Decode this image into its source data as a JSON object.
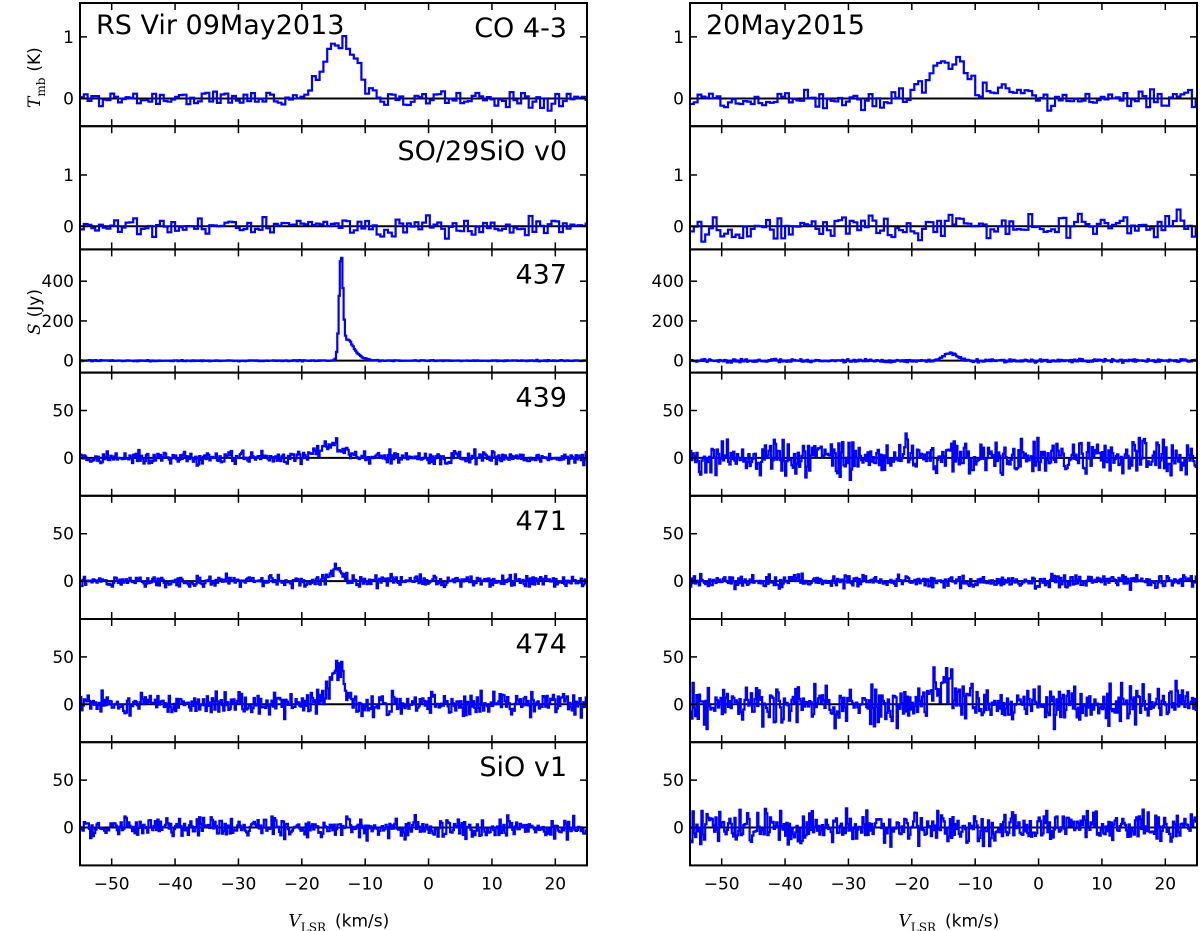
{
  "chart_data": {
    "type": "line",
    "grid": false,
    "xlabel": "V_LSR  (km/s)",
    "xlabel_main": "V",
    "xlabel_sub": "LSR",
    "xlabel_unit": "(km/s)",
    "xlim": [
      -55,
      25
    ],
    "xticks": [
      -50,
      -40,
      -30,
      -20,
      -10,
      0,
      10,
      20
    ],
    "ylabel_top_main": "T",
    "ylabel_top_sub": "mb",
    "ylabel_top_unit": "(K)",
    "ylabel_mid_main": "S",
    "ylabel_mid_unit": "(Jy)",
    "series_color": "#0000ff",
    "columns": [
      {
        "epoch": "09May2013",
        "title": "RS Vir 09May2013"
      },
      {
        "epoch": "20May2015",
        "title": "20May2015"
      }
    ],
    "rows": [
      {
        "label": "CO 4-3",
        "unit": "K",
        "ylim": [
          -0.45,
          1.55
        ],
        "yticks": [
          0,
          1
        ]
      },
      {
        "label": "SO/29SiO v0",
        "unit": "K",
        "ylim": [
          -0.45,
          1.95
        ],
        "yticks": [
          0,
          1
        ]
      },
      {
        "label": "437",
        "unit": "Jy",
        "ylim": [
          -60,
          560
        ],
        "yticks": [
          0,
          200,
          400
        ]
      },
      {
        "label": "439",
        "unit": "Jy",
        "ylim": [
          -40,
          90
        ],
        "yticks": [
          0,
          50
        ]
      },
      {
        "label": "471",
        "unit": "Jy",
        "ylim": [
          -40,
          90
        ],
        "yticks": [
          0,
          50
        ]
      },
      {
        "label": "474",
        "unit": "Jy",
        "ylim": [
          -40,
          90
        ],
        "yticks": [
          0,
          50
        ]
      },
      {
        "label": "SiO v1",
        "unit": "Jy",
        "ylim": [
          -40,
          90
        ],
        "yticks": [
          0,
          50
        ]
      }
    ],
    "panels": [
      {
        "row": 0,
        "col": 0,
        "step": 0.6,
        "noise": 0.07,
        "seed": 11,
        "features": [
          {
            "center": -14,
            "amp": 0.92,
            "sigma": 2.6
          }
        ]
      },
      {
        "row": 0,
        "col": 1,
        "step": 0.6,
        "noise": 0.08,
        "seed": 12,
        "features": [
          {
            "center": -14,
            "amp": 0.6,
            "sigma": 3.2
          },
          {
            "center": -5,
            "amp": 0.15,
            "sigma": 1.5
          }
        ]
      },
      {
        "row": 1,
        "col": 0,
        "step": 0.6,
        "noise": 0.09,
        "seed": 21,
        "features": []
      },
      {
        "row": 1,
        "col": 1,
        "step": 0.6,
        "noise": 0.12,
        "seed": 22,
        "features": []
      },
      {
        "row": 2,
        "col": 0,
        "step": 0.2,
        "noise": 1.5,
        "seed": 31,
        "features": [
          {
            "center": -13.8,
            "amp": 490,
            "sigma": 0.3
          },
          {
            "center": -12.8,
            "amp": 90,
            "sigma": 0.8
          },
          {
            "center": -11.5,
            "amp": 25,
            "sigma": 1.2
          }
        ]
      },
      {
        "row": 2,
        "col": 1,
        "step": 0.2,
        "noise": 4,
        "seed": 32,
        "features": [
          {
            "center": -14,
            "amp": 40,
            "sigma": 1.0
          }
        ]
      },
      {
        "row": 3,
        "col": 0,
        "step": 0.2,
        "noise": 3.5,
        "seed": 41,
        "features": [
          {
            "center": -15.5,
            "amp": 14,
            "sigma": 2.0
          }
        ]
      },
      {
        "row": 3,
        "col": 1,
        "step": 0.2,
        "noise": 9,
        "seed": 42,
        "features": []
      },
      {
        "row": 4,
        "col": 0,
        "step": 0.2,
        "noise": 3,
        "seed": 51,
        "features": [
          {
            "center": -14.5,
            "amp": 12,
            "sigma": 1.0
          }
        ]
      },
      {
        "row": 4,
        "col": 1,
        "step": 0.2,
        "noise": 3.5,
        "seed": 52,
        "features": []
      },
      {
        "row": 5,
        "col": 0,
        "step": 0.2,
        "noise": 6,
        "seed": 61,
        "features": [
          {
            "center": -14.5,
            "amp": 35,
            "sigma": 1.2
          }
        ]
      },
      {
        "row": 5,
        "col": 1,
        "step": 0.2,
        "noise": 10,
        "seed": 62,
        "features": [
          {
            "center": -15,
            "amp": 20,
            "sigma": 2.0
          }
        ]
      },
      {
        "row": 6,
        "col": 0,
        "step": 0.2,
        "noise": 5,
        "seed": 71,
        "features": []
      },
      {
        "row": 6,
        "col": 1,
        "step": 0.2,
        "noise": 8,
        "seed": 72,
        "features": []
      }
    ]
  }
}
